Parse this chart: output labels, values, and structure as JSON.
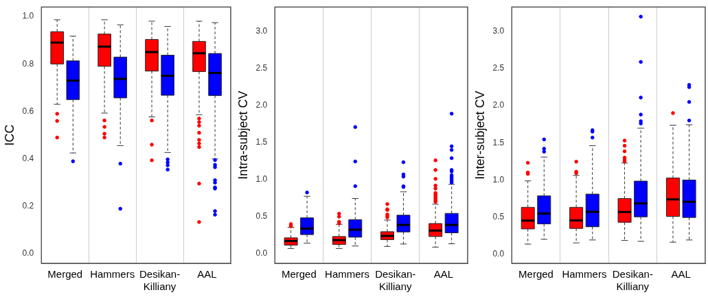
{
  "chart_data": [
    {
      "type": "box",
      "ylabel": "ICC",
      "categories": [
        "Merged",
        "Hammers",
        "Desikan-Killiany",
        "AAL"
      ],
      "ylim": [
        -0.04,
        1.04
      ],
      "yticks": [
        {
          "value": 0,
          "label": "0.0"
        },
        0.2,
        0.4,
        0.6,
        0.8,
        {
          "value": 1,
          "label": "1.0"
        }
      ],
      "grid": "x",
      "series": [
        {
          "color": "#ff0000",
          "boxes": [
            {
              "low": 0.63,
              "q1": 0.8,
              "median": 0.89,
              "q3": 0.936,
              "high": 0.986,
              "outliers": [
                0.59,
                0.56,
                0.49
              ]
            },
            {
              "low": 0.593,
              "q1": 0.79,
              "median": 0.873,
              "q3": 0.926,
              "high": 0.986,
              "outliers": [
                0.562,
                0.535,
                0.506,
                0.49
              ]
            },
            {
              "low": 0.577,
              "q1": 0.77,
              "median": 0.85,
              "q3": 0.903,
              "high": 0.98,
              "outliers": [
                0.562,
                0.46,
                0.394
              ]
            },
            {
              "low": 0.586,
              "q1": 0.768,
              "median": 0.845,
              "q3": 0.895,
              "high": 0.98,
              "outliers": [
                0.57,
                0.555,
                0.54,
                0.51,
                0.48,
                0.465,
                0.45,
                0.296,
                0.134
              ]
            }
          ]
        },
        {
          "color": "#0000ff",
          "boxes": [
            {
              "low": 0.425,
              "q1": 0.65,
              "median": 0.73,
              "q3": 0.813,
              "high": 0.917,
              "outliers": [
                0.39
              ]
            },
            {
              "low": 0.456,
              "q1": 0.657,
              "median": 0.737,
              "q3": 0.829,
              "high": 0.965,
              "outliers": [
                0.38,
                0.19
              ]
            },
            {
              "low": 0.427,
              "q1": 0.668,
              "median": 0.75,
              "q3": 0.837,
              "high": 0.958,
              "outliers": [
                0.398,
                0.385,
                0.373,
                0.355
              ]
            },
            {
              "low": 0.4,
              "q1": 0.667,
              "median": 0.762,
              "q3": 0.844,
              "high": 0.974,
              "outliers": [
                0.395,
                0.375,
                0.365,
                0.31,
                0.3,
                0.28,
                0.275,
                0.18,
                0.165
              ]
            }
          ]
        }
      ]
    },
    {
      "type": "box",
      "ylabel": "Intra-subject CV",
      "categories": [
        "Merged",
        "Hammers",
        "Desikan-Killiany",
        "AAL"
      ],
      "ylim": [
        -0.13,
        3.33
      ],
      "yticks": [
        {
          "value": 0,
          "label": "0.0"
        },
        0.5,
        {
          "value": 1,
          "label": "1.0"
        },
        1.5,
        {
          "value": 2,
          "label": "2.0"
        },
        2.5,
        {
          "value": 3,
          "label": "3.0"
        }
      ],
      "grid": "x",
      "series": [
        {
          "color": "#ff0000",
          "boxes": [
            {
              "low": 0.07,
              "q1": 0.116,
              "median": 0.172,
              "q3": 0.214,
              "high": 0.356,
              "outliers": [
                0.4,
                0.38,
                0.37
              ]
            },
            {
              "low": 0.07,
              "q1": 0.125,
              "median": 0.184,
              "q3": 0.232,
              "high": 0.395,
              "outliers": [
                0.54,
                0.5,
                0.43,
                0.41
              ]
            },
            {
              "low": 0.098,
              "q1": 0.19,
              "median": 0.24,
              "q3": 0.297,
              "high": 0.454,
              "outliers": [
                0.67,
                0.6,
                0.59,
                0.53,
                0.51,
                0.49
              ]
            },
            {
              "low": 0.089,
              "q1": 0.232,
              "median": 0.312,
              "q3": 0.407,
              "high": 0.668,
              "outliers": [
                1.26,
                1.13,
                1.01,
                0.92,
                0.88,
                0.82,
                0.8,
                0.78,
                0.76,
                0.74,
                0.72,
                0.7
              ]
            }
          ]
        },
        {
          "color": "#0000ff",
          "boxes": [
            {
              "low": 0.143,
              "q1": 0.258,
              "median": 0.339,
              "q3": 0.484,
              "high": 0.775,
              "outliers": [
                0.826
              ]
            },
            {
              "low": 0.104,
              "q1": 0.223,
              "median": 0.324,
              "q3": 0.46,
              "high": 0.745,
              "outliers": [
                1.71,
                1.245,
                0.912
              ]
            },
            {
              "low": 0.131,
              "q1": 0.294,
              "median": 0.389,
              "q3": 0.52,
              "high": 0.835,
              "outliers": [
                1.235,
                1.07,
                1.04,
                0.91,
                0.9
              ]
            },
            {
              "low": 0.134,
              "q1": 0.282,
              "median": 0.389,
              "q3": 0.544,
              "high": 0.936,
              "outliers": [
                1.89,
                1.45,
                1.4,
                1.29,
                1.13,
                1.11,
                1.06,
                1.04,
                1.02,
                1.0,
                0.98,
                0.96
              ]
            }
          ]
        }
      ]
    },
    {
      "type": "box",
      "ylabel": "Inter-subject CV",
      "categories": [
        "Merged",
        "Hammers",
        "Desikan-Killiany",
        "AAL"
      ],
      "ylim": [
        -0.125,
        3.33
      ],
      "yticks": [
        {
          "value": 0,
          "label": "0.0"
        },
        0.5,
        {
          "value": 1,
          "label": "1.0"
        },
        1.5,
        {
          "value": 2,
          "label": "2.0"
        },
        2.5,
        {
          "value": 3,
          "label": "3.0"
        }
      ],
      "grid": "x",
      "series": [
        {
          "color": "#ff0000",
          "boxes": [
            {
              "low": 0.134,
              "q1": 0.339,
              "median": 0.451,
              "q3": 0.63,
              "high": 0.986,
              "outliers": [
                1.23,
                1.1,
                1.08
              ]
            },
            {
              "low": 0.151,
              "q1": 0.345,
              "median": 0.454,
              "q3": 0.63,
              "high": 1.06,
              "outliers": [
                1.245,
                1.11,
                1.09
              ]
            },
            {
              "low": 0.184,
              "q1": 0.428,
              "median": 0.567,
              "q3": 0.748,
              "high": 1.227,
              "outliers": [
                1.53,
                1.46,
                1.385,
                1.3,
                1.27,
                1.25
              ]
            },
            {
              "low": 0.16,
              "q1": 0.508,
              "median": 0.737,
              "q3": 1.025,
              "high": 1.737,
              "outliers": [
                1.9
              ]
            }
          ]
        },
        {
          "color": "#0000ff",
          "boxes": [
            {
              "low": 0.199,
              "q1": 0.407,
              "median": 0.546,
              "q3": 0.784,
              "high": 1.307,
              "outliers": [
                1.545,
                1.42,
                1.38
              ]
            },
            {
              "low": 0.19,
              "q1": 0.368,
              "median": 0.57,
              "q3": 0.808,
              "high": 1.461,
              "outliers": [
                1.67,
                1.65,
                1.57
              ]
            },
            {
              "low": 0.172,
              "q1": 0.502,
              "median": 0.683,
              "q3": 0.983,
              "high": 1.696,
              "outliers": [
                3.2,
                2.59,
                2.11,
                1.88,
                1.79,
                1.76
              ]
            },
            {
              "low": 0.19,
              "q1": 0.493,
              "median": 0.704,
              "q3": 0.998,
              "high": 1.743,
              "outliers": [
                2.28,
                2.25,
                2.05,
                1.8
              ]
            }
          ]
        }
      ]
    }
  ]
}
